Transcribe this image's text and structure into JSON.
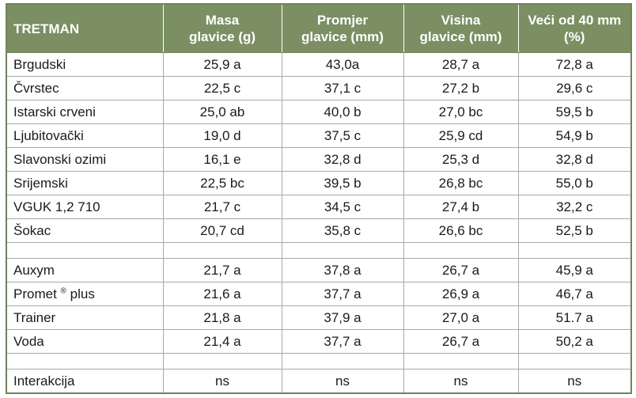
{
  "table": {
    "header": [
      [
        "TRETMAN"
      ],
      [
        "Masa",
        "glavice (g)"
      ],
      [
        "Promjer",
        "glavice (mm)"
      ],
      [
        "Visina",
        "glavice (mm)"
      ],
      [
        "Veći od 40 mm",
        "(%)"
      ]
    ],
    "groups": [
      [
        [
          "Brgudski",
          "25,9 a",
          "43,0a",
          "28,7 a",
          "72,8 a"
        ],
        [
          "Čvrstec",
          "22,5 c",
          "37,1 c",
          "27,2 b",
          "29,6 c"
        ],
        [
          "Istarski crveni",
          "25,0 ab",
          "40,0 b",
          "27,0 bc",
          "59,5 b"
        ],
        [
          "Ljubitovački",
          "19,0 d",
          "37,5 c",
          "25,9 cd",
          "54,9 b"
        ],
        [
          "Slavonski ozimi",
          "16,1 e",
          "32,8 d",
          "25,3 d",
          "32,8 d"
        ],
        [
          "Srijemski",
          "22,5 bc",
          "39,5 b",
          "26,8 bc",
          "55,0 b"
        ],
        [
          "VGUK 1,2 710",
          "21,7 c",
          "34,5 c",
          "27,4 b",
          "32,2 c"
        ],
        [
          "Šokac",
          "20,7 cd",
          "35,8 c",
          "26,6 bc",
          "52,5 b"
        ]
      ],
      [
        [
          "Auxym",
          "21,7 a",
          "37,8 a",
          "26,7 a",
          "45,9 a"
        ],
        [
          {
            "text": "Promet",
            "sup": "®",
            "after": "plus"
          },
          "21,6 a",
          "37,7 a",
          "26,9 a",
          "46,7 a"
        ],
        [
          "Trainer",
          "21,8 a",
          "37,9 a",
          "27,0 a",
          "51.7 a"
        ],
        [
          "Voda",
          "21,4 a",
          "37,7 a",
          "26,7 a",
          "50,2 a"
        ]
      ],
      [
        [
          "Interakcija",
          "ns",
          "ns",
          "ns",
          "ns"
        ]
      ]
    ]
  }
}
